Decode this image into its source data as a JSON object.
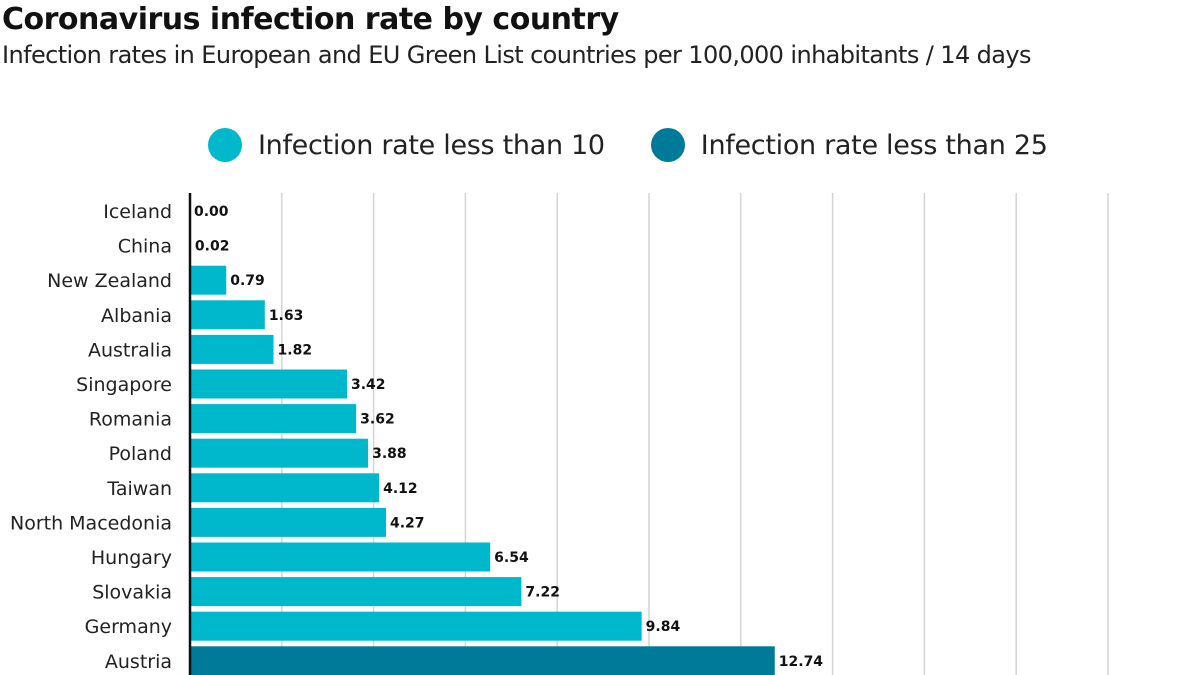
{
  "chart_data": {
    "type": "bar",
    "orientation": "horizontal",
    "title": "Coronavirus infection rate by country",
    "subtitle": "Infection rates in European and EU Green List countries per 100,000 inhabitants / 14 days",
    "legend": [
      {
        "label": "Infection rate less than 10",
        "color": "#00b8cc"
      },
      {
        "label": "Infection rate less than 25",
        "color": "#007a99"
      }
    ],
    "legend_position": "top",
    "categories": [
      "Iceland",
      "China",
      "New Zealand",
      "Albania",
      "Australia",
      "Singapore",
      "Romania",
      "Poland",
      "Taiwan",
      "North Macedonia",
      "Hungary",
      "Slovakia",
      "Germany",
      "Austria"
    ],
    "values": [
      0.0,
      0.02,
      0.79,
      1.63,
      1.82,
      3.42,
      3.62,
      3.88,
      4.12,
      4.27,
      6.54,
      7.22,
      9.84,
      12.74
    ],
    "value_labels": [
      "0.00",
      "0.02",
      "0.79",
      "1.63",
      "1.82",
      "3.42",
      "3.62",
      "3.88",
      "4.12",
      "4.27",
      "6.54",
      "7.22",
      "9.84",
      "12.74"
    ],
    "series_index": [
      0,
      0,
      0,
      0,
      0,
      0,
      0,
      0,
      0,
      0,
      0,
      0,
      0,
      1
    ],
    "xlim": [
      0,
      22
    ],
    "grid_step": 2,
    "grid": true,
    "xlabel": "",
    "ylabel": ""
  }
}
